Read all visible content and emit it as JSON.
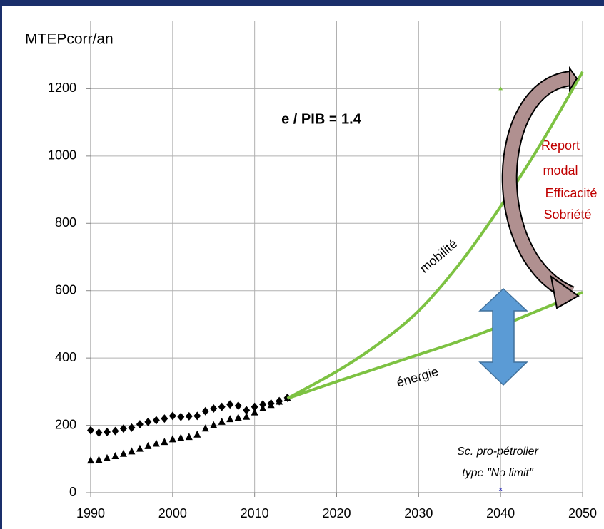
{
  "chart_data": {
    "type": "line",
    "y_label": "MTEPcorr/an",
    "xlim": [
      1990,
      2050
    ],
    "xticks": [
      1990,
      2000,
      2010,
      2020,
      2030,
      2040,
      2050
    ],
    "ylim": [
      0,
      1400
    ],
    "yticks": [
      0,
      200,
      400,
      600,
      800,
      1000,
      1200
    ],
    "grid": true,
    "series": [
      {
        "color": "#000000",
        "marker": "diamond",
        "x": [
          1990,
          1991,
          1992,
          1993,
          1994,
          1995,
          1996,
          1997,
          1998,
          1999,
          2000,
          2001,
          2002,
          2003,
          2004,
          2005,
          2006,
          2007,
          2008,
          2009,
          2010,
          2011,
          2012,
          2013,
          2014
        ],
        "values": [
          185,
          178,
          180,
          183,
          190,
          193,
          203,
          210,
          215,
          220,
          228,
          225,
          227,
          228,
          242,
          250,
          255,
          262,
          258,
          245,
          255,
          262,
          265,
          272,
          282
        ]
      },
      {
        "color": "#000000",
        "marker": "triangle",
        "x": [
          1990,
          1991,
          1992,
          1993,
          1994,
          1995,
          1996,
          1997,
          1998,
          1999,
          2000,
          2001,
          2002,
          2003,
          2004,
          2005,
          2006,
          2007,
          2008,
          2009,
          2010,
          2011,
          2012,
          2013,
          2014
        ],
        "values": [
          95,
          97,
          102,
          108,
          115,
          122,
          130,
          138,
          145,
          150,
          158,
          162,
          165,
          172,
          190,
          200,
          210,
          218,
          222,
          225,
          238,
          250,
          260,
          270,
          280
        ]
      },
      {
        "color": "#7dc242",
        "marker": "none",
        "x": [
          2014,
          2020,
          2025,
          2030,
          2035,
          2040,
          2045,
          2050
        ],
        "values": [
          280,
          360,
          440,
          540,
          680,
          850,
          1040,
          1250
        ]
      },
      {
        "color": "#7dc242",
        "marker": "none",
        "x": [
          2014,
          2020,
          2025,
          2030,
          2035,
          2040,
          2045,
          2050
        ],
        "values": [
          280,
          330,
          370,
          410,
          450,
          495,
          545,
          595
        ]
      },
      {
        "color": "#7dc242",
        "marker": "small-triangle",
        "x": [
          2040
        ],
        "values": [
          1200
        ]
      },
      {
        "color": "#4040c0",
        "marker": "cross",
        "x": [
          2040
        ],
        "values": [
          10
        ]
      }
    ],
    "annotations": {
      "ratio": "e / PIB = 1.4",
      "mobility": "mobilité",
      "energy": "énergie",
      "levers": [
        "Report",
        "modal",
        "Efficacité",
        "Sobriété"
      ],
      "scenario": [
        "Sc. pro-pétrolier",
        "type \"No limit\""
      ]
    }
  }
}
